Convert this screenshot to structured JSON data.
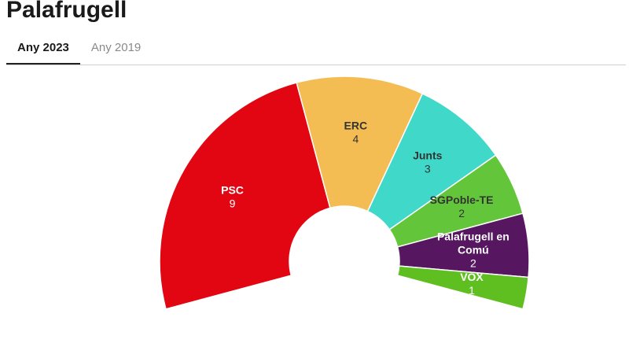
{
  "page_title": "Palafrugell",
  "tabs": [
    {
      "label": "Any 2023",
      "active": true
    },
    {
      "label": "Any 2019",
      "active": false
    }
  ],
  "chart_data": {
    "type": "pie",
    "series": [
      {
        "party": "PSC",
        "seats": 9,
        "color": "#e20613",
        "label_color": "#ffffff"
      },
      {
        "party": "ERC",
        "seats": 4,
        "color": "#f4bd53",
        "label_color": "#333333"
      },
      {
        "party": "Junts",
        "seats": 3,
        "color": "#40d9c9",
        "label_color": "#333333"
      },
      {
        "party": "SGPoble-TE",
        "seats": 2,
        "color": "#63c63a",
        "label_color": "#333333"
      },
      {
        "party": "Palafrugell en Comú",
        "seats": 2,
        "color": "#561660",
        "label_color": "#ffffff"
      },
      {
        "party": "VOX",
        "seats": 1,
        "color": "#5fbf20",
        "label_color": "#ffffff"
      }
    ]
  }
}
